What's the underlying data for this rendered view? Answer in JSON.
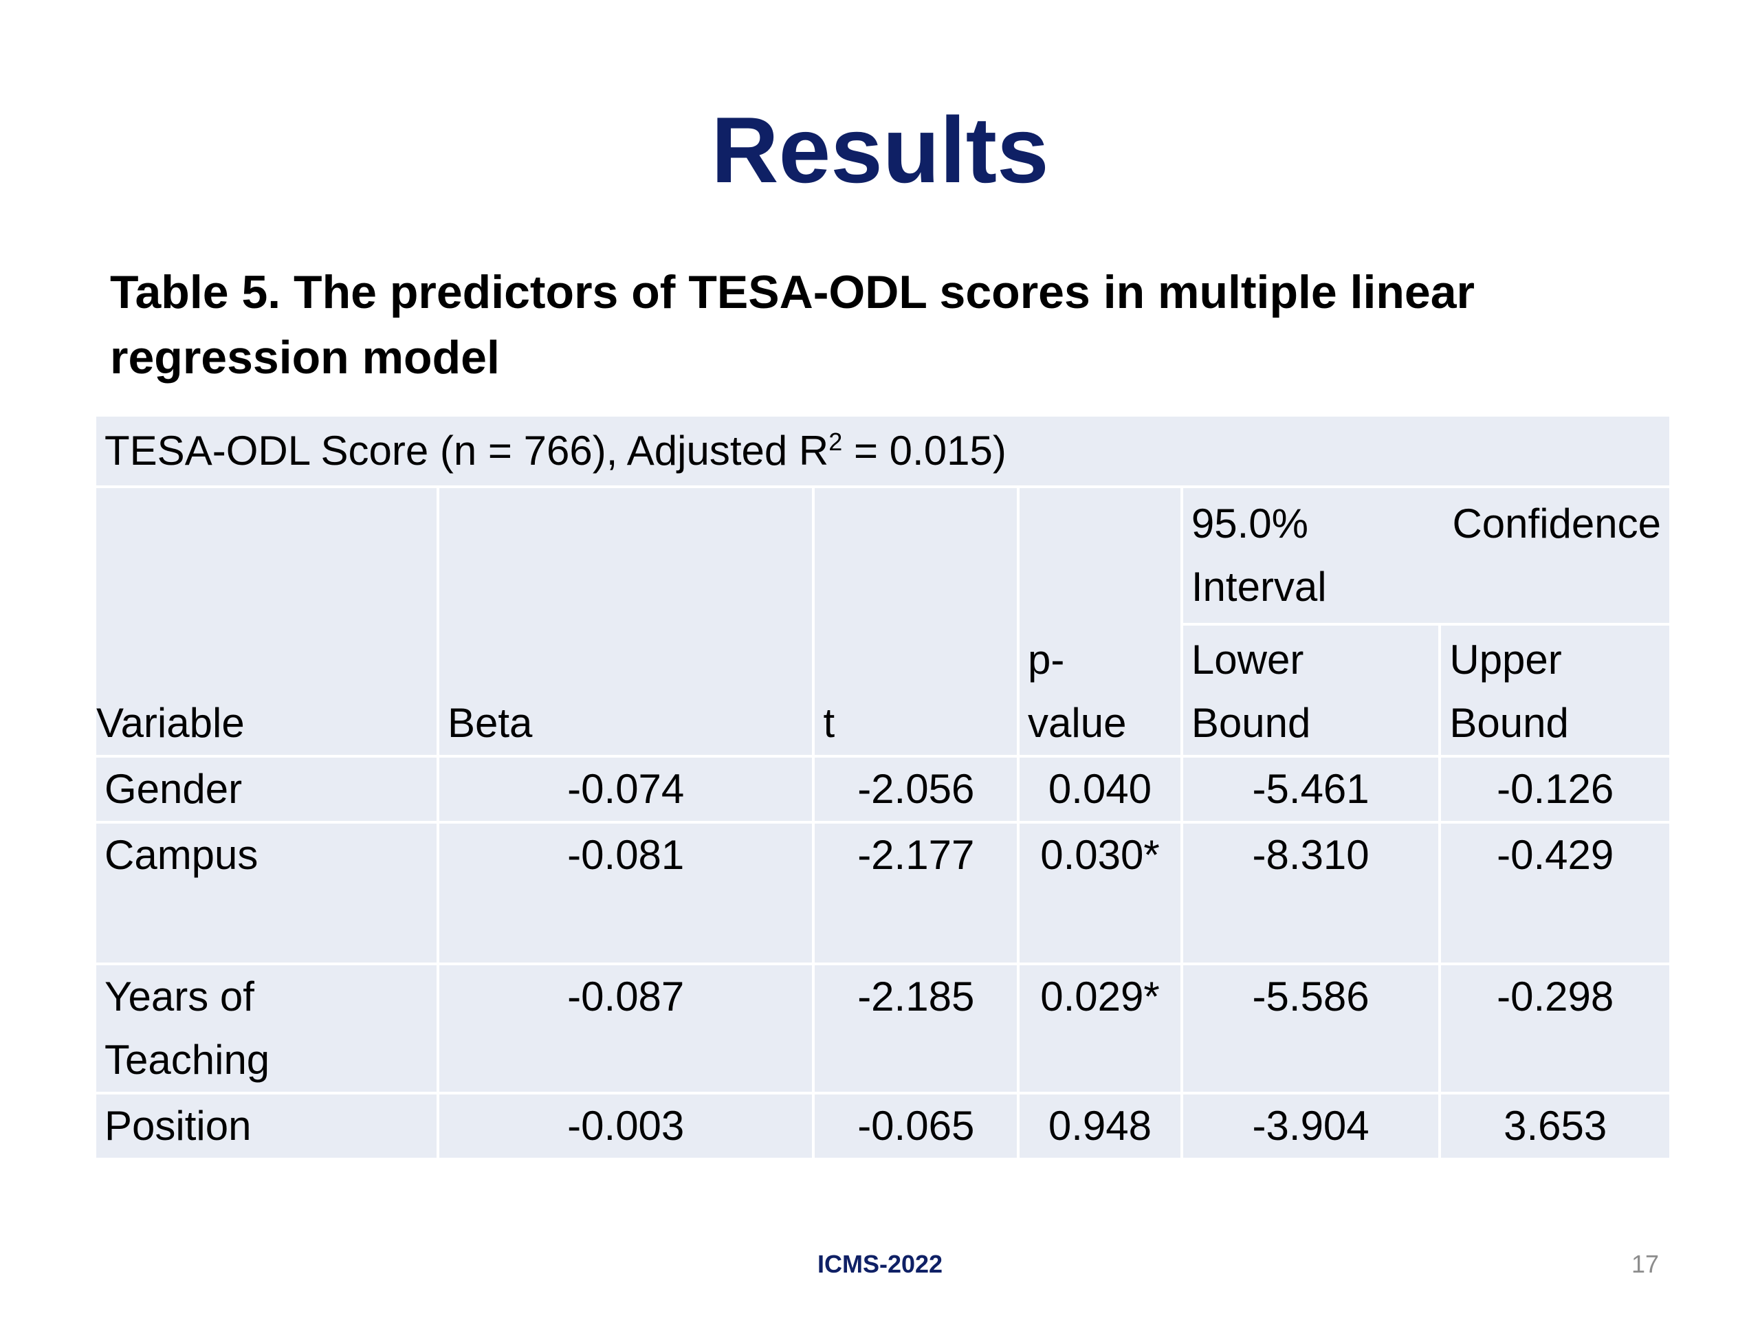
{
  "slide": {
    "title": "Results",
    "caption_line1": "Table 5. The predictors of TESA-ODL scores in multiple linear",
    "caption_line2": "regression model",
    "footer": "ICMS-2022",
    "page_number": "17"
  },
  "table": {
    "header_prefix": "TESA-ODL Score (n = 766), Adjusted R",
    "header_sup": "2",
    "header_suffix": " = 0.015)",
    "ci_word1": "95.0%",
    "ci_word2": "Confidence",
    "ci_word3": "Interval",
    "columns": {
      "variable": "Variable",
      "beta": "Beta",
      "t": "t",
      "p_line1": "p-",
      "p_line2": "value",
      "lower_line1": "Lower",
      "lower_line2": "Bound",
      "upper_line1": "Upper",
      "upper_line2": "Bound"
    },
    "rows": [
      {
        "variable": "Gender",
        "beta": "-0.074",
        "t": "-2.056",
        "p": "0.040",
        "lower": "-5.461",
        "upper": "-0.126"
      },
      {
        "variable": "Campus",
        "beta": "-0.081",
        "t": "-2.177",
        "p": "0.030*",
        "lower": "-8.310",
        "upper": "-0.429"
      },
      {
        "variable_line1": "Years of",
        "variable_line2": "Teaching",
        "beta": "-0.087",
        "t": "-2.185",
        "p": "0.029*",
        "lower": "-5.586",
        "upper": "-0.298"
      },
      {
        "variable": "Position",
        "beta": "-0.003",
        "t": "-0.065",
        "p": "0.948",
        "lower": "-3.904",
        "upper": "3.653"
      }
    ]
  }
}
